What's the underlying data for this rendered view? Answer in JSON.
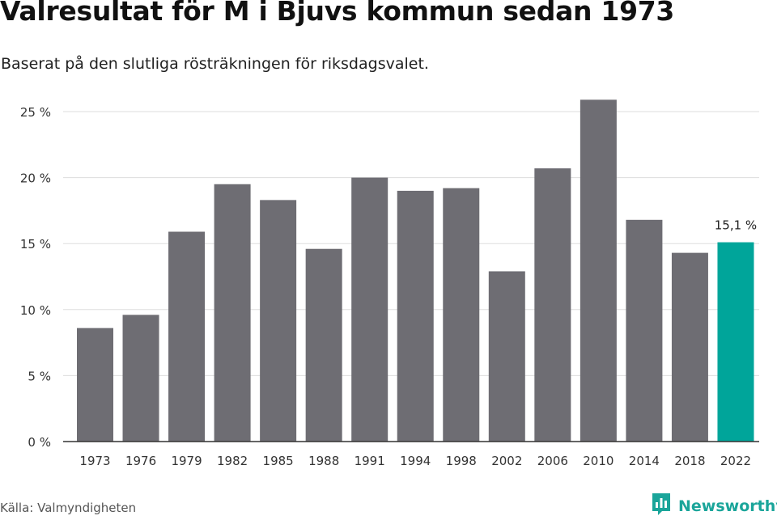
{
  "header": {
    "title": "Valresultat för M i Bjuvs kommun sedan 1973",
    "subtitle": "Baserat på den slutliga rösträkningen för riksdagsvalet."
  },
  "footer": {
    "source": "Källa: Valmyndigheten",
    "brand": "Newsworthy",
    "brand_icon": "newsworthy-logo-icon"
  },
  "colors": {
    "bar": "#6e6d73",
    "highlight": "#00a59a",
    "grid": "#dddddd",
    "axis": "#333333"
  },
  "chart_data": {
    "type": "bar",
    "title": "Valresultat för M i Bjuvs kommun sedan 1973",
    "subtitle": "Baserat på den slutliga rösträkningen för riksdagsvalet.",
    "categories": [
      "1973",
      "1976",
      "1979",
      "1982",
      "1985",
      "1988",
      "1991",
      "1994",
      "1998",
      "2002",
      "2006",
      "2010",
      "2014",
      "2018",
      "2022"
    ],
    "values": [
      8.6,
      9.6,
      15.9,
      19.5,
      18.3,
      14.6,
      20.0,
      19.0,
      19.2,
      12.9,
      20.7,
      25.9,
      16.8,
      14.3,
      15.1
    ],
    "highlight_index": 14,
    "highlight_label": "15,1 %",
    "ylim": [
      0,
      25
    ],
    "yticks": [
      0,
      5,
      10,
      15,
      20,
      25
    ],
    "ytick_labels": [
      "0 %",
      "5 %",
      "10 %",
      "15 %",
      "20 %",
      "25 %"
    ],
    "grid": true,
    "legend": "none"
  }
}
